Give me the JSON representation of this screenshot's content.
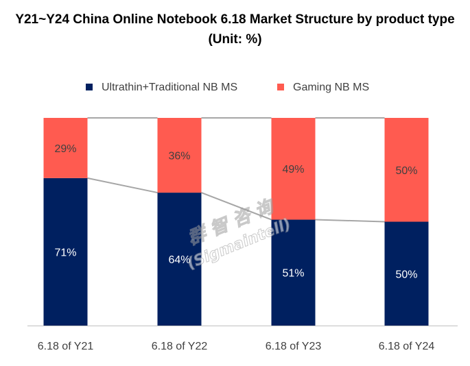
{
  "chart_data": {
    "type": "bar",
    "stacked": true,
    "percent_stacked": true,
    "title": "Y21~Y24 China Online Notebook 6.18 Market Structure by product type (Unit: %)",
    "categories": [
      "6.18 of Y21",
      "6.18 of Y22",
      "6.18 of Y23",
      "6.18 of Y24"
    ],
    "series": [
      {
        "name": "Ultrathin+Traditional NB MS",
        "values": [
          71,
          64,
          51,
          50
        ],
        "color": "#002060"
      },
      {
        "name": "Gaming NB MS",
        "values": [
          29,
          36,
          49,
          50
        ],
        "color": "#FF5B50"
      }
    ],
    "value_suffix": "%",
    "ylim": [
      0,
      100
    ],
    "legend_position": "top-center",
    "grid": false,
    "series_lines": true,
    "series_line_color": "#A6A6A6"
  },
  "watermark": {
    "line1": "群 智 咨 询",
    "line2": "(Sigmaintell)"
  }
}
